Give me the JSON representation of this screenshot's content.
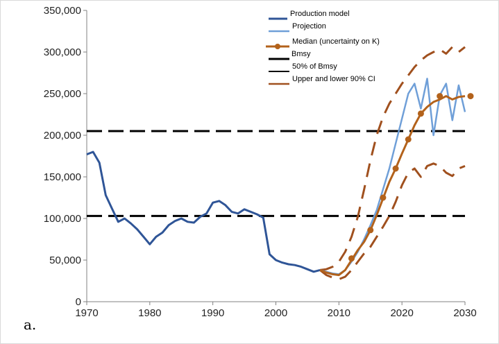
{
  "panel_label": "a.",
  "colors": {
    "production": "#2f5597",
    "projection": "#6f9fd8",
    "median": "#b3621b",
    "ci": "#a0501e",
    "reference": "#000000"
  },
  "chart_data": {
    "type": "line",
    "title": "",
    "xlabel": "",
    "ylabel": "",
    "xlim": [
      1970,
      2030
    ],
    "ylim": [
      0,
      350000
    ],
    "x_ticks": [
      1970,
      1980,
      1990,
      2000,
      2010,
      2020,
      2030
    ],
    "x_tick_labels": [
      "1970",
      "1980",
      "1990",
      "2000",
      "2010",
      "2020",
      "2030"
    ],
    "y_ticks": [
      0,
      50000,
      100000,
      150000,
      200000,
      250000,
      300000,
      350000
    ],
    "y_tick_labels": [
      "0",
      "50,000",
      "100,000",
      "150,000",
      "200,000",
      "250,000",
      "300,000",
      "350,000"
    ],
    "grid": false,
    "legend_position": "top-right",
    "legend": [
      "Production model",
      "Projection",
      "Median (uncertainty on K)",
      "Bmsy",
      "50% of Bmsy",
      "Upper and lower 90% CI"
    ],
    "series": [
      {
        "name": "Production model",
        "style": "solid",
        "x": [
          1970,
          1971,
          1972,
          1973,
          1974,
          1975,
          1976,
          1977,
          1978,
          1979,
          1980,
          1981,
          1982,
          1983,
          1984,
          1985,
          1986,
          1987,
          1988,
          1989,
          1990,
          1991,
          1992,
          1993,
          1994,
          1995,
          1996,
          1997,
          1998,
          1999,
          2000,
          2001,
          2002,
          2003,
          2004,
          2005,
          2006,
          2007
        ],
        "y": [
          177000,
          180000,
          167000,
          128000,
          112000,
          96000,
          100000,
          94000,
          87000,
          78000,
          69000,
          78000,
          83000,
          92000,
          97000,
          100000,
          96000,
          95000,
          102000,
          106000,
          119000,
          121000,
          116000,
          108000,
          106000,
          111000,
          108000,
          105000,
          101000,
          57000,
          50000,
          47000,
          45000,
          44000,
          42000,
          39000,
          36000,
          38000
        ]
      },
      {
        "name": "Projection",
        "style": "solid",
        "x": [
          2007,
          2008,
          2009,
          2010,
          2011,
          2012,
          2013,
          2014,
          2015,
          2016,
          2017,
          2018,
          2019,
          2020,
          2021,
          2022,
          2023,
          2024,
          2025,
          2026,
          2027,
          2028,
          2029,
          2030
        ],
        "y": [
          38000,
          36000,
          34000,
          33000,
          38000,
          48000,
          60000,
          75000,
          92000,
          110000,
          135000,
          160000,
          190000,
          220000,
          250000,
          262000,
          232000,
          268000,
          200000,
          248000,
          262000,
          218000,
          260000,
          228000
        ]
      },
      {
        "name": "Median (uncertainty on K)",
        "style": "solid-markers",
        "x": [
          2007,
          2008,
          2009,
          2010,
          2011,
          2012,
          2013,
          2014,
          2015,
          2016,
          2017,
          2018,
          2019,
          2020,
          2021,
          2022,
          2023,
          2024,
          2025,
          2026,
          2027,
          2028,
          2029,
          2030
        ],
        "y": [
          38000,
          35000,
          33000,
          32000,
          38000,
          50000,
          62000,
          72000,
          86000,
          104000,
          124000,
          144000,
          160000,
          178000,
          195000,
          212000,
          226000,
          234000,
          240000,
          243000,
          247000,
          243000,
          246000,
          247000
        ],
        "marker_x": [
          2012,
          2015,
          2017,
          2019,
          2021,
          2023,
          2026,
          2031
        ],
        "marker_y": [
          52000,
          86000,
          125000,
          160000,
          195000,
          226000,
          247000,
          247000
        ]
      },
      {
        "name": "Bmsy",
        "style": "dashed",
        "x": [
          1970,
          2030
        ],
        "y": [
          205000,
          205000
        ]
      },
      {
        "name": "50% of Bmsy",
        "style": "dashed",
        "x": [
          1970,
          2030
        ],
        "y": [
          103000,
          103000
        ]
      },
      {
        "name": "Upper and lower 90% CI",
        "style": "dashed",
        "x": [
          2007,
          2008,
          2009,
          2010,
          2011,
          2012,
          2013,
          2014,
          2015,
          2016,
          2017,
          2018,
          2019,
          2020,
          2021,
          2022,
          2023,
          2024,
          2025,
          2026,
          2027,
          2028,
          2029,
          2030
        ],
        "y": [
          38000,
          39000,
          42000,
          48000,
          60000,
          78000,
          102000,
          135000,
          170000,
          200000,
          222000,
          238000,
          250000,
          262000,
          272000,
          282000,
          290000,
          296000,
          300000,
          303000,
          298000,
          306000,
          300000,
          306000
        ]
      },
      {
        "name": "Upper and lower 90% CI",
        "style": "dashed",
        "x": [
          2007,
          2008,
          2009,
          2010,
          2011,
          2012,
          2013,
          2014,
          2015,
          2016,
          2017,
          2018,
          2019,
          2020,
          2021,
          2022,
          2023,
          2024,
          2025,
          2026,
          2027,
          2028,
          2029,
          2030
        ],
        "y": [
          38000,
          32000,
          29000,
          27000,
          30000,
          38000,
          48000,
          58000,
          66000,
          78000,
          90000,
          103000,
          120000,
          140000,
          155000,
          160000,
          150000,
          163000,
          166000,
          163000,
          155000,
          151000,
          160000,
          163000
        ]
      }
    ]
  }
}
